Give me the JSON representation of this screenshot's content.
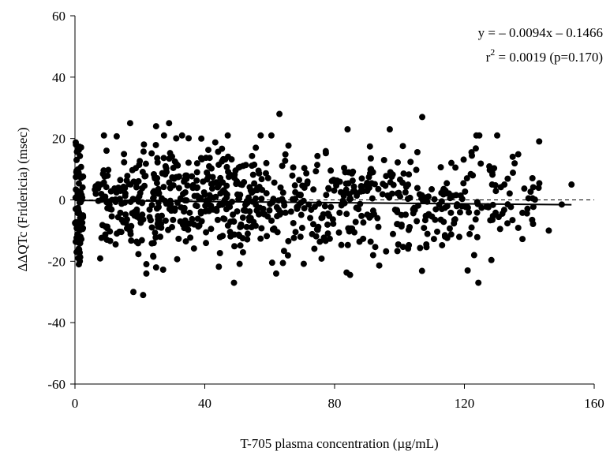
{
  "chart_data": {
    "type": "scatter",
    "title": "",
    "xlabel": "T-705 plasma concentration (µg/mL)",
    "ylabel": "ΔΔQTc (Fridericia) (msec)",
    "xlim": [
      0,
      160
    ],
    "ylim": [
      -60,
      60
    ],
    "x_ticks": [
      "0",
      "40",
      "80",
      "120",
      "160"
    ],
    "y_ticks": [
      "60",
      "40",
      "20",
      "0",
      "-20",
      "-40",
      "-60"
    ],
    "grid": false,
    "legend": "none",
    "annotations": {
      "equation": "y = – 0.0094x – 0.1466",
      "r2_prefix": "r",
      "r2_sup": "2",
      "r2_suffix": " = 0.0019 (p=0.170)"
    },
    "regression": {
      "slope": -0.0094,
      "intercept": -0.1466,
      "x_range": [
        0,
        153
      ]
    },
    "reference_line_y": 0,
    "colors": {
      "points": "#000000",
      "regression": "#000000",
      "axes": "#000000"
    },
    "point_count": 900,
    "points": [
      [
        0.3,
        18
      ],
      [
        0.5,
        13
      ],
      [
        1,
        10
      ],
      [
        0.5,
        -17
      ],
      [
        1,
        -19
      ],
      [
        1.5,
        -20
      ],
      [
        1.2,
        -21
      ],
      [
        17,
        25
      ],
      [
        25,
        24
      ],
      [
        29,
        25
      ],
      [
        63,
        28
      ],
      [
        107,
        27
      ],
      [
        97,
        23
      ],
      [
        84,
        23
      ],
      [
        18,
        -30
      ],
      [
        21,
        -31
      ],
      [
        25,
        -22
      ],
      [
        22,
        -24
      ],
      [
        49,
        -27
      ],
      [
        62,
        -24
      ],
      [
        121,
        -23
      ],
      [
        123,
        -18
      ],
      [
        146,
        -10
      ],
      [
        153,
        5
      ],
      [
        150,
        -1.5
      ],
      [
        141,
        0.5
      ]
    ]
  }
}
